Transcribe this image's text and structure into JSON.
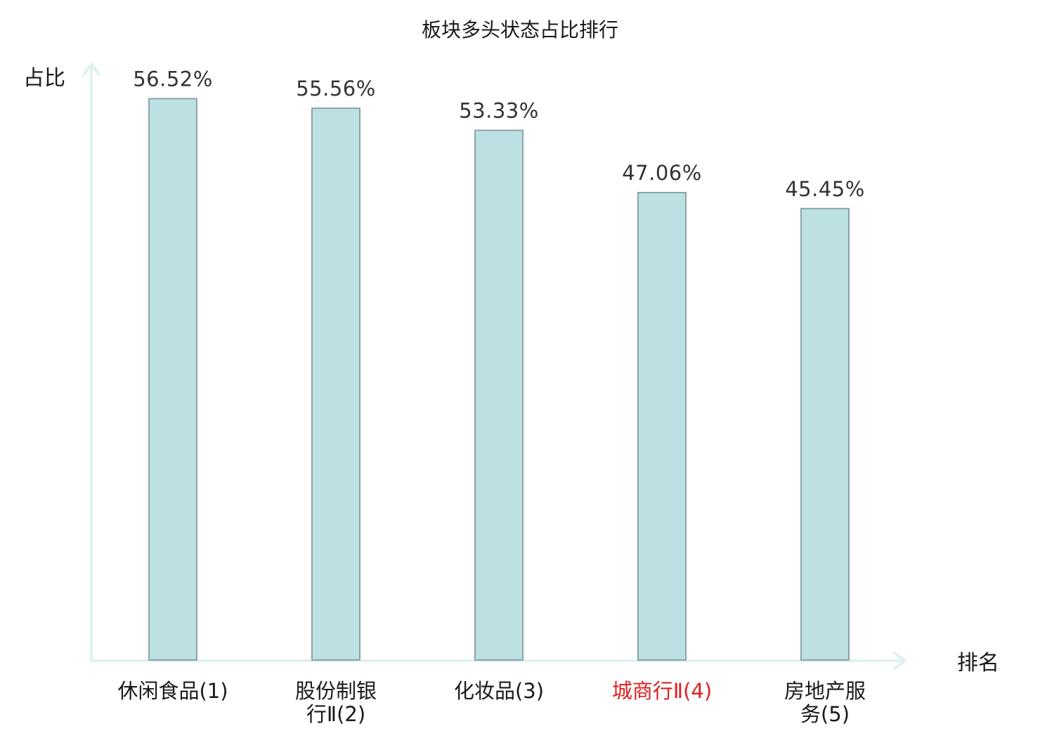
{
  "chart_data": {
    "type": "bar",
    "title": "板块多头状态占比排行",
    "ylabel": "占比",
    "xlabel": "排名",
    "categories": [
      [
        "休闲食品(1)"
      ],
      [
        "股份制银",
        "行Ⅱ(2)"
      ],
      [
        "化妆品(3)"
      ],
      [
        "城商行Ⅱ(4)"
      ],
      [
        "房地产服",
        "务(5)"
      ]
    ],
    "values": [
      56.52,
      55.56,
      53.33,
      47.06,
      45.45
    ],
    "value_labels": [
      "56.52%",
      "55.56%",
      "53.33%",
      "47.06%",
      "45.45%"
    ],
    "category_colors": [
      "#1a1a1a",
      "#1a1a1a",
      "#1a1a1a",
      "#e02020",
      "#1a1a1a"
    ],
    "ylim": [
      0,
      60
    ],
    "grid": false,
    "colors": {
      "bar_fill": "#bde0e2",
      "bar_stroke": "#8aa5a7",
      "axis": "#e0f2f0",
      "highlight": "#e02020"
    }
  }
}
